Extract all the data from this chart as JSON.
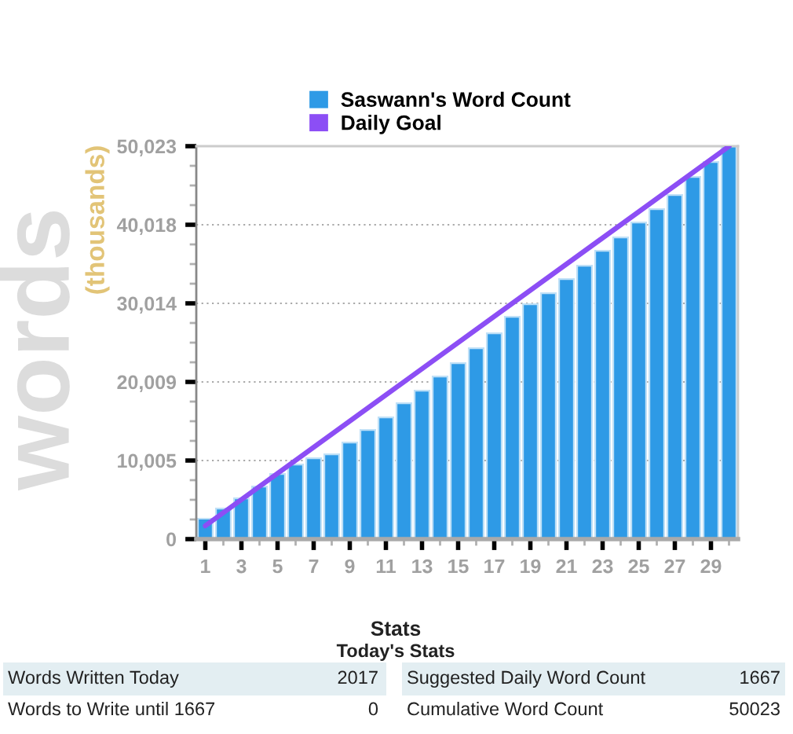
{
  "chart_data": {
    "type": "bar",
    "ylabel": "words",
    "grid": "y",
    "legend": "top",
    "x": [
      1,
      2,
      3,
      4,
      5,
      6,
      7,
      8,
      9,
      10,
      11,
      12,
      13,
      14,
      15,
      16,
      17,
      18,
      19,
      20,
      21,
      22,
      23,
      24,
      25,
      26,
      27,
      28,
      29,
      30
    ],
    "xlim": [
      0.5,
      30.5
    ],
    "xticks": [
      1,
      {
        "value": 2,
        "label": null
      },
      3,
      {
        "value": 4,
        "label": null
      },
      5,
      {
        "value": 6,
        "label": null
      },
      7,
      {
        "value": 8,
        "label": null
      },
      9,
      {
        "value": 10,
        "label": null
      },
      11,
      {
        "value": 12,
        "label": null
      },
      13,
      {
        "value": 14,
        "label": null
      },
      15,
      {
        "value": 16,
        "label": null
      },
      17,
      {
        "value": 18,
        "label": null
      },
      19,
      {
        "value": 20,
        "label": null
      },
      21,
      {
        "value": 22,
        "label": null
      },
      23,
      {
        "value": 24,
        "label": null
      },
      25,
      {
        "value": 26,
        "label": null
      },
      27,
      {
        "value": 28,
        "label": null
      },
      29,
      {
        "value": 30,
        "label": null
      }
    ],
    "ylim": [
      0,
      50023
    ],
    "yticks": [
      0,
      {
        "value": 2501,
        "label": null
      },
      {
        "value": 5003,
        "label": null
      },
      {
        "value": 7504,
        "label": null
      },
      {
        "value": 10005,
        "label": "10,005"
      },
      {
        "value": 12506,
        "label": null
      },
      {
        "value": 15007,
        "label": null
      },
      {
        "value": 17508,
        "label": null
      },
      {
        "value": 20009,
        "label": "20,009"
      },
      {
        "value": 22510,
        "label": null
      },
      {
        "value": 25011,
        "label": null
      },
      {
        "value": 27513,
        "label": null
      },
      {
        "value": 30014,
        "label": "30,014"
      },
      {
        "value": 32515,
        "label": null
      },
      {
        "value": 35016,
        "label": null
      },
      {
        "value": 37517,
        "label": null
      },
      {
        "value": 40018,
        "label": "40,018"
      },
      {
        "value": 42519,
        "label": null
      },
      {
        "value": 45020,
        "label": null
      },
      {
        "value": 47522,
        "label": null
      },
      {
        "value": 50023,
        "label": "50,023"
      }
    ],
    "series": [
      {
        "name": "Saswann's Word Count",
        "color": "#2e9ae6",
        "values": [
          2600,
          3900,
          5200,
          6700,
          8300,
          9500,
          10300,
          10800,
          12300,
          13900,
          15500,
          17300,
          18900,
          20700,
          22400,
          24300,
          26200,
          28300,
          29900,
          31300,
          33100,
          34800,
          36700,
          38400,
          40300,
          42000,
          43800,
          46100,
          48000,
          50000
        ]
      },
      {
        "name": "Daily Goal",
        "type": "line",
        "color": "#8c4ef5",
        "x": [
          1,
          30
        ],
        "values": [
          1700,
          50000
        ]
      }
    ],
    "annotations": [
      "(thousands)",
      "Stats",
      "Today's Stats",
      "Words Written Today",
      "2017",
      "Suggested Daily Word Count",
      "1667",
      "Words to Write until 1667",
      "0",
      "Cumulative Word Count",
      "50023"
    ]
  }
}
